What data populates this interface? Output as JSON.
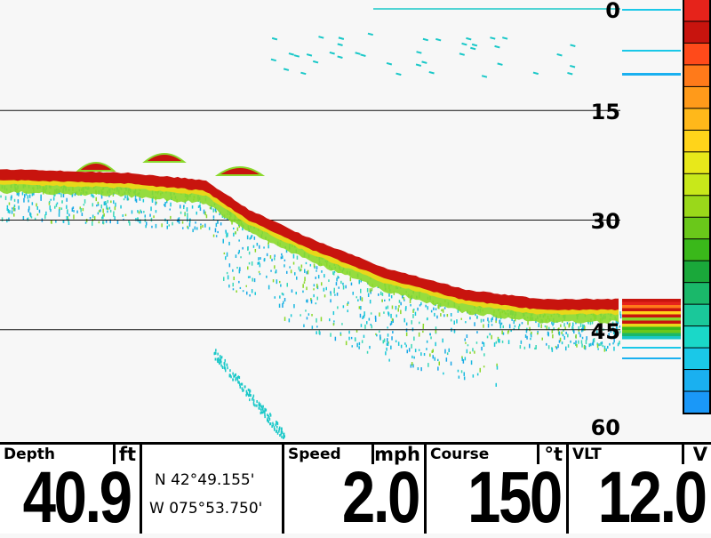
{
  "sonar": {
    "depth_scale": [
      "0",
      "15",
      "30",
      "45",
      "60"
    ],
    "depth_range_ft": [
      0,
      60
    ],
    "palette": [
      "#e6231b",
      "#c8140e",
      "#ff4a1a",
      "#ff7a1a",
      "#ff9a1a",
      "#ffb81a",
      "#ffd41a",
      "#e8e81a",
      "#c8e81a",
      "#9ad81a",
      "#6ac81a",
      "#3ab81a",
      "#1aa83a",
      "#1ab86a",
      "#1ac89a",
      "#1ad8c8",
      "#1ac8e8",
      "#1ab0f0",
      "#1a98f8"
    ],
    "bottom_profile_ft": [
      [
        0,
        23.5
      ],
      [
        0.2,
        24
      ],
      [
        0.33,
        25
      ],
      [
        0.4,
        29
      ],
      [
        0.5,
        33
      ],
      [
        0.62,
        37
      ],
      [
        0.75,
        40
      ],
      [
        0.87,
        41.3
      ]
    ]
  },
  "hud": {
    "depth": {
      "label": "Depth",
      "unit": "ft",
      "value": "40.9"
    },
    "position": {
      "lat": "N 42°49.155'",
      "lon": "W 075°53.750'"
    },
    "speed": {
      "label": "Speed",
      "unit": "mph",
      "value": "2.0"
    },
    "course": {
      "label": "Course",
      "unit": "°t",
      "value": "150"
    },
    "voltage": {
      "label": "VLT",
      "unit": "V",
      "value": "12.0"
    }
  }
}
